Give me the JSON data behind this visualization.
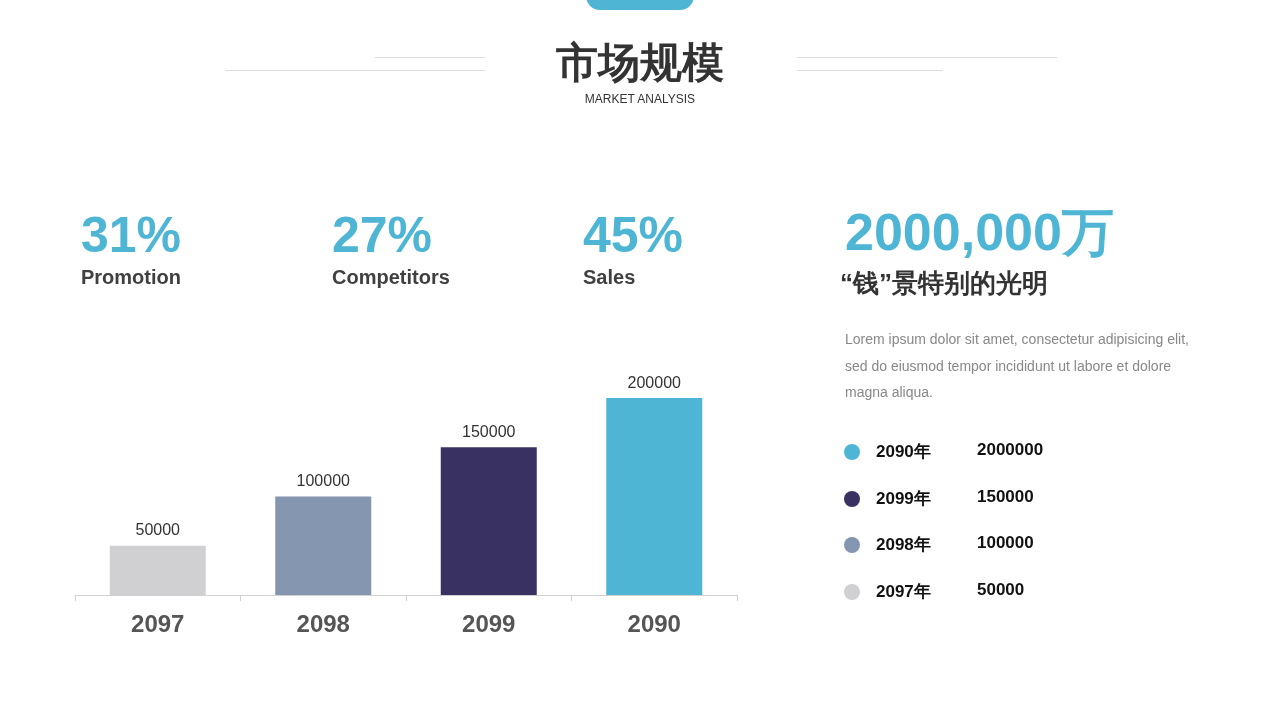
{
  "chart_data": [
    {
      "type": "bar",
      "title": "市场规模",
      "subtitle": "MARKET ANALYSIS",
      "categories": [
        "2097",
        "2098",
        "2099",
        "2090"
      ],
      "values": [
        50000,
        100000,
        150000,
        200000
      ],
      "colors": [
        "#d0cfd1",
        "#8496b0",
        "#3a3163",
        "#4fb5d5"
      ],
      "data_labels": true,
      "annotations": [
        "31%",
        "Promotion",
        "27%",
        "Competitors",
        "45%",
        "Sales"
      ]
    },
    {
      "type": "other",
      "annotations": [
        "2000,000万",
        "“钱”景特别的光明",
        "Lorem ipsum dolor sit amet, consectetur adipisicing elit, sed do eiusmod tempor incididunt ut labore et dolore magna aliqua.",
        "2090年",
        "2000000",
        "2099年",
        "150000",
        "2098年",
        "100000",
        "2097年",
        "50000"
      ]
    }
  ]
}
